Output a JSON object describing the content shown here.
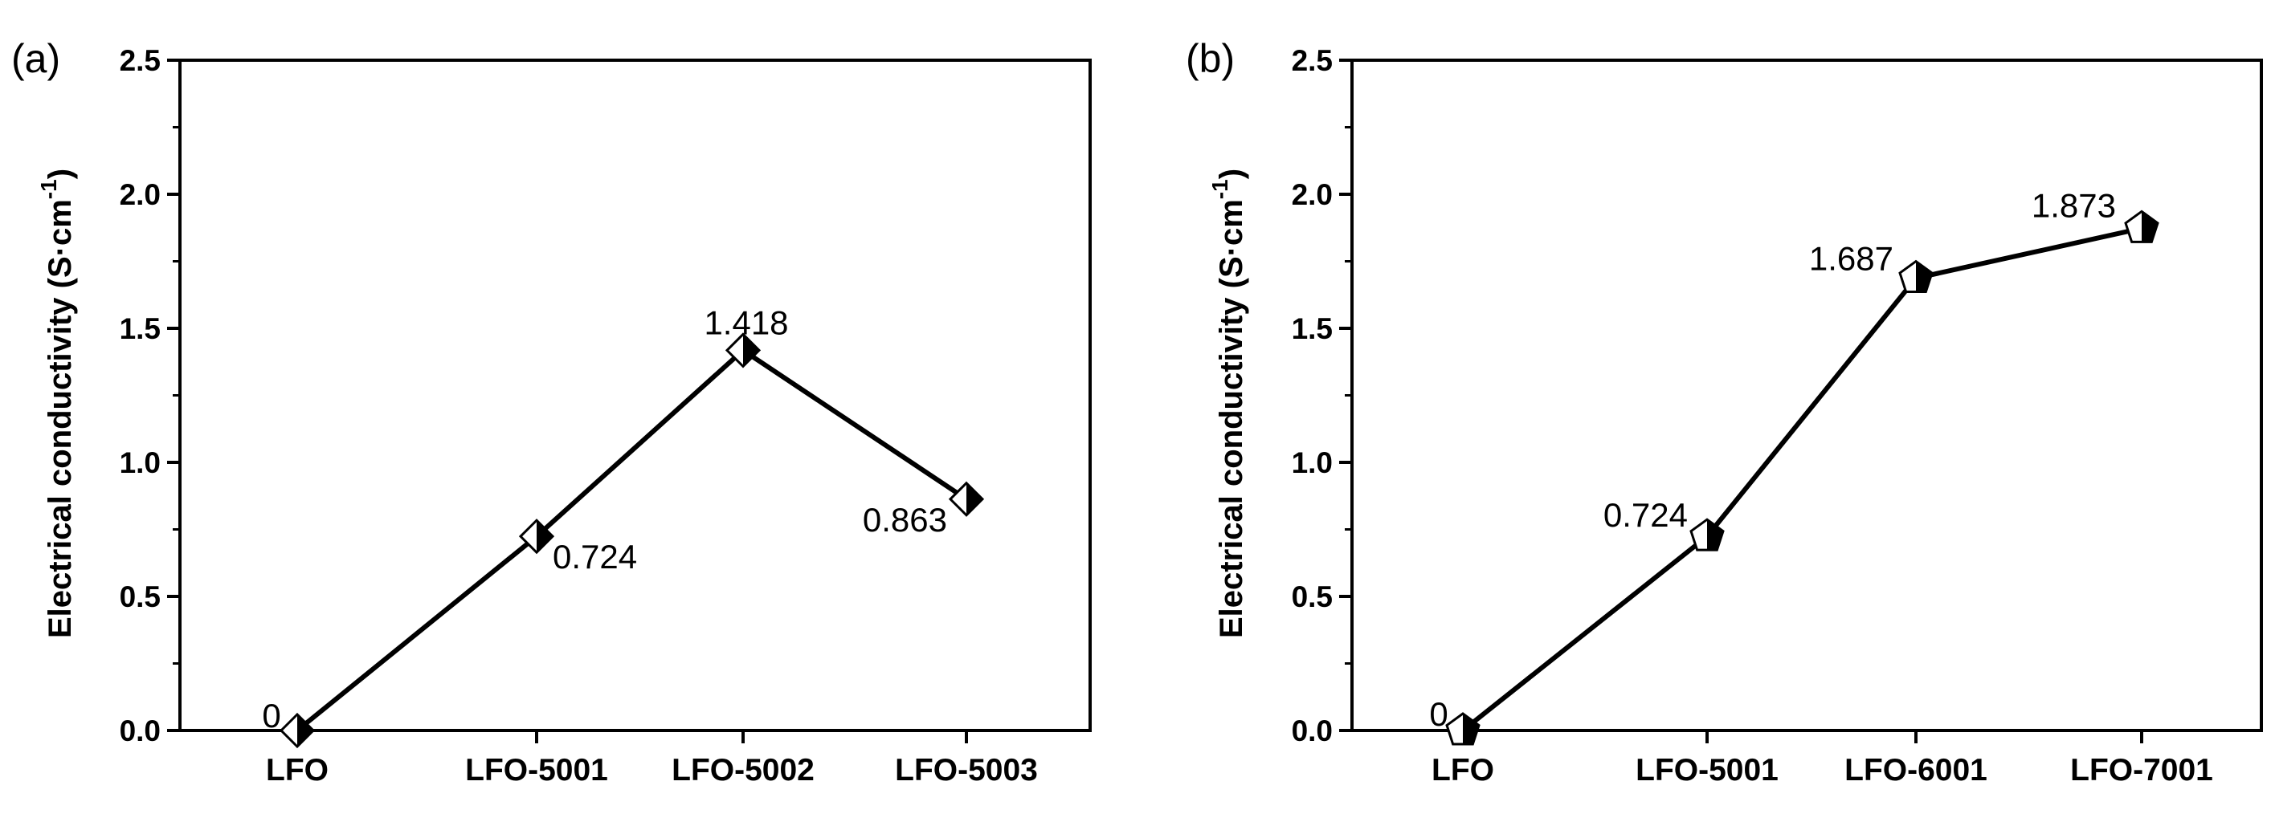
{
  "chart_data": [
    {
      "type": "line",
      "panel_label": "(a)",
      "categories": [
        "LFO",
        "LFO-5001",
        "LFO-5002",
        "LFO-5003"
      ],
      "series": [
        {
          "values": [
            0,
            0.724,
            1.418,
            0.863
          ],
          "marker": "diamond-half-filled"
        }
      ],
      "data_labels": [
        "0",
        "0.724",
        "1.418",
        "0.863"
      ],
      "connected": [
        true,
        true,
        true,
        false
      ],
      "ylabel": "Electrical conductivity (S·cm",
      "ylabel_sup": "-1",
      "ylabel_close": ")",
      "ylim": [
        0,
        2.5
      ],
      "yticks": [
        0.0,
        0.5,
        1.0,
        1.5,
        2.0,
        2.5
      ],
      "ytick_labels": [
        "0.0",
        "0.5",
        "1.0",
        "1.5",
        "2.0",
        "2.5"
      ],
      "grid": false,
      "legend": "none"
    },
    {
      "type": "line",
      "panel_label": "(b)",
      "categories": [
        "LFO",
        "LFO-5001",
        "LFO-6001",
        "LFO-7001"
      ],
      "series": [
        {
          "values": [
            0,
            0.724,
            1.687,
            1.873
          ],
          "marker": "pentagon-half-filled"
        }
      ],
      "data_labels": [
        "0",
        "0.724",
        "1.687",
        "1.873"
      ],
      "connected": [
        true,
        true,
        true,
        true
      ],
      "ylabel": "Electrical conductivity (S·cm",
      "ylabel_sup": "-1",
      "ylabel_close": ")",
      "ylim": [
        0,
        2.5
      ],
      "yticks": [
        0.0,
        0.5,
        1.0,
        1.5,
        2.0,
        2.5
      ],
      "ytick_labels": [
        "0.0",
        "0.5",
        "1.0",
        "1.5",
        "2.0",
        "2.5"
      ],
      "grid": false,
      "legend": "none"
    }
  ]
}
